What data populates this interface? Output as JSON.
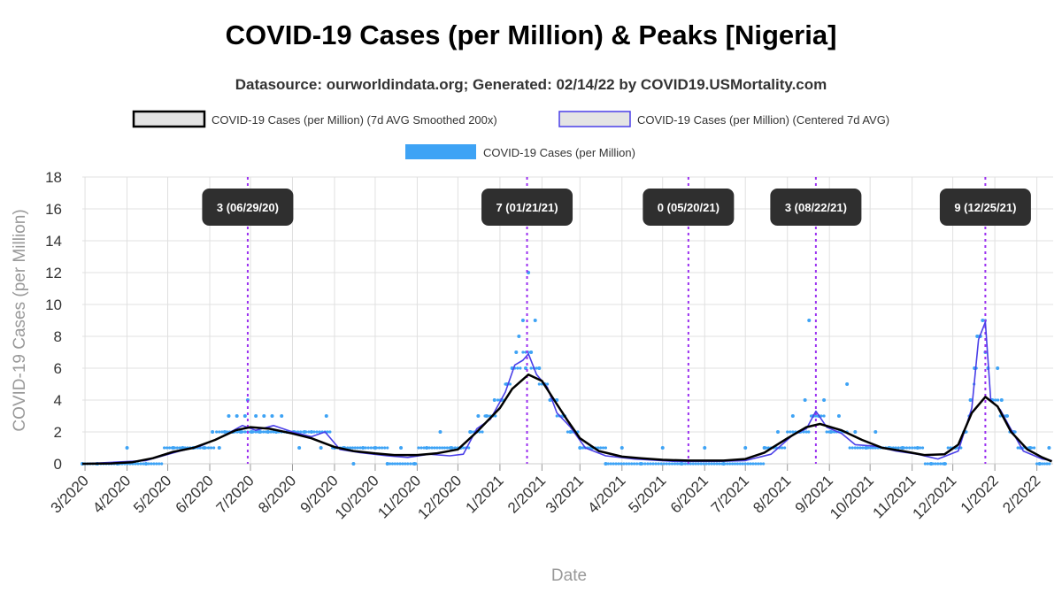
{
  "title": "COVID-19 Cases (per Million) & Peaks [Nigeria]",
  "subtitle": "Datasource: ourworldindata.org; Generated: 02/14/22 by COVID19.USMortality.com",
  "colors": {
    "smoothed": "#000000",
    "centered": "#4a3fe8",
    "daily": "#3ea3f5",
    "peak_line": "#9b30f0",
    "peak_box": "#2f2f2f",
    "grid": "#e0e0e0"
  },
  "chart_data": {
    "type": "line",
    "xlabel": "Date",
    "ylabel": "COVID-19 Cases (per Million)",
    "ylim": [
      0,
      18
    ],
    "yticks": [
      0,
      2,
      4,
      6,
      8,
      10,
      12,
      14,
      16,
      18
    ],
    "xlim": [
      "2020-02-28",
      "2022-02-13"
    ],
    "xticks": [
      {
        "label": "3/2020",
        "date": "2020-03-01"
      },
      {
        "label": "4/2020",
        "date": "2020-04-01"
      },
      {
        "label": "5/2020",
        "date": "2020-05-01"
      },
      {
        "label": "6/2020",
        "date": "2020-06-01"
      },
      {
        "label": "7/2020",
        "date": "2020-07-01"
      },
      {
        "label": "8/2020",
        "date": "2020-08-01"
      },
      {
        "label": "9/2020",
        "date": "2020-09-01"
      },
      {
        "label": "10/2020",
        "date": "2020-10-01"
      },
      {
        "label": "11/2020",
        "date": "2020-11-01"
      },
      {
        "label": "12/2020",
        "date": "2020-12-01"
      },
      {
        "label": "1/2021",
        "date": "2021-01-01"
      },
      {
        "label": "2/2021",
        "date": "2021-02-01"
      },
      {
        "label": "3/2021",
        "date": "2021-03-01"
      },
      {
        "label": "4/2021",
        "date": "2021-04-01"
      },
      {
        "label": "5/2021",
        "date": "2021-05-01"
      },
      {
        "label": "6/2021",
        "date": "2021-06-01"
      },
      {
        "label": "7/2021",
        "date": "2021-07-01"
      },
      {
        "label": "8/2021",
        "date": "2021-08-01"
      },
      {
        "label": "9/2021",
        "date": "2021-09-01"
      },
      {
        "label": "10/2021",
        "date": "2021-10-01"
      },
      {
        "label": "11/2021",
        "date": "2021-11-01"
      },
      {
        "label": "12/2021",
        "date": "2021-12-01"
      },
      {
        "label": "1/2022",
        "date": "2022-01-01"
      },
      {
        "label": "2/2022",
        "date": "2022-02-01"
      }
    ],
    "legend": [
      {
        "key": "smoothed",
        "label": "COVID-19 Cases (per Million) (7d AVG Smoothed 200x)"
      },
      {
        "key": "centered",
        "label": "COVID-19 Cases (per Million) (Centered 7d AVG)"
      },
      {
        "key": "daily",
        "label": "COVID-19 Cases (per Million)"
      }
    ],
    "peaks": [
      {
        "label": "3 (06/29/20)",
        "date": "2020-06-29"
      },
      {
        "label": "7 (01/21/21)",
        "date": "2021-01-21"
      },
      {
        "label": "0 (05/20/21)",
        "date": "2021-05-20"
      },
      {
        "label": "3 (08/22/21)",
        "date": "2021-08-22"
      },
      {
        "label": "9 (12/25/21)",
        "date": "2021-12-25"
      }
    ],
    "series": [
      {
        "name": "COVID-19 Cases (per Million) (7d AVG Smoothed 200x)",
        "key": "smoothed",
        "points": [
          [
            "2020-02-28",
            0
          ],
          [
            "2020-03-20",
            0.02
          ],
          [
            "2020-04-05",
            0.1
          ],
          [
            "2020-04-20",
            0.35
          ],
          [
            "2020-05-05",
            0.75
          ],
          [
            "2020-05-20",
            1.0
          ],
          [
            "2020-06-05",
            1.5
          ],
          [
            "2020-06-20",
            2.1
          ],
          [
            "2020-07-01",
            2.3
          ],
          [
            "2020-07-15",
            2.2
          ],
          [
            "2020-08-01",
            1.9
          ],
          [
            "2020-08-15",
            1.6
          ],
          [
            "2020-09-01",
            1.05
          ],
          [
            "2020-09-15",
            0.8
          ],
          [
            "2020-10-01",
            0.65
          ],
          [
            "2020-10-15",
            0.55
          ],
          [
            "2020-11-01",
            0.55
          ],
          [
            "2020-11-15",
            0.65
          ],
          [
            "2020-12-01",
            0.9
          ],
          [
            "2020-12-15",
            2.0
          ],
          [
            "2021-01-01",
            3.5
          ],
          [
            "2021-01-10",
            4.7
          ],
          [
            "2021-01-22",
            5.6
          ],
          [
            "2021-02-01",
            5.2
          ],
          [
            "2021-02-10",
            4.0
          ],
          [
            "2021-02-20",
            2.7
          ],
          [
            "2021-03-01",
            1.6
          ],
          [
            "2021-03-15",
            0.8
          ],
          [
            "2021-04-01",
            0.45
          ],
          [
            "2021-04-15",
            0.35
          ],
          [
            "2021-05-01",
            0.25
          ],
          [
            "2021-05-20",
            0.2
          ],
          [
            "2021-06-15",
            0.2
          ],
          [
            "2021-07-01",
            0.3
          ],
          [
            "2021-07-15",
            0.7
          ],
          [
            "2021-08-01",
            1.6
          ],
          [
            "2021-08-15",
            2.3
          ],
          [
            "2021-08-25",
            2.5
          ],
          [
            "2021-09-10",
            2.1
          ],
          [
            "2021-09-25",
            1.5
          ],
          [
            "2021-10-10",
            1.0
          ],
          [
            "2021-10-25",
            0.8
          ],
          [
            "2021-11-10",
            0.55
          ],
          [
            "2021-11-25",
            0.6
          ],
          [
            "2021-12-05",
            1.2
          ],
          [
            "2021-12-15",
            3.2
          ],
          [
            "2021-12-25",
            4.2
          ],
          [
            "2022-01-03",
            3.6
          ],
          [
            "2022-01-13",
            2.0
          ],
          [
            "2022-01-25",
            0.9
          ],
          [
            "2022-02-05",
            0.4
          ],
          [
            "2022-02-12",
            0.15
          ]
        ]
      },
      {
        "name": "COVID-19 Cases (per Million) (Centered 7d AVG)",
        "key": "centered",
        "points": [
          [
            "2020-02-28",
            0
          ],
          [
            "2020-04-15",
            0.2
          ],
          [
            "2020-05-10",
            0.8
          ],
          [
            "2020-05-25",
            1.1
          ],
          [
            "2020-06-10",
            1.7
          ],
          [
            "2020-06-25",
            2.4
          ],
          [
            "2020-07-05",
            2.1
          ],
          [
            "2020-07-18",
            2.4
          ],
          [
            "2020-08-01",
            2.0
          ],
          [
            "2020-08-15",
            1.7
          ],
          [
            "2020-08-25",
            2.0
          ],
          [
            "2020-09-05",
            0.9
          ],
          [
            "2020-09-20",
            0.7
          ],
          [
            "2020-10-10",
            0.5
          ],
          [
            "2020-10-25",
            0.4
          ],
          [
            "2020-11-10",
            0.6
          ],
          [
            "2020-11-25",
            0.5
          ],
          [
            "2020-12-05",
            0.6
          ],
          [
            "2020-12-15",
            2.2
          ],
          [
            "2020-12-25",
            2.8
          ],
          [
            "2021-01-05",
            4.5
          ],
          [
            "2021-01-12",
            6.2
          ],
          [
            "2021-01-18",
            6.5
          ],
          [
            "2021-01-22",
            6.9
          ],
          [
            "2021-01-28",
            5.6
          ],
          [
            "2021-02-05",
            4.8
          ],
          [
            "2021-02-12",
            3.2
          ],
          [
            "2021-02-22",
            2.3
          ],
          [
            "2021-03-05",
            1.0
          ],
          [
            "2021-03-20",
            0.5
          ],
          [
            "2021-04-10",
            0.3
          ],
          [
            "2021-05-10",
            0.15
          ],
          [
            "2021-06-10",
            0.15
          ],
          [
            "2021-07-01",
            0.2
          ],
          [
            "2021-07-20",
            0.6
          ],
          [
            "2021-08-05",
            1.8
          ],
          [
            "2021-08-15",
            2.2
          ],
          [
            "2021-08-22",
            3.3
          ],
          [
            "2021-08-30",
            2.3
          ],
          [
            "2021-09-10",
            1.9
          ],
          [
            "2021-09-20",
            1.2
          ],
          [
            "2021-10-05",
            1.1
          ],
          [
            "2021-10-20",
            0.8
          ],
          [
            "2021-11-05",
            0.6
          ],
          [
            "2021-11-20",
            0.3
          ],
          [
            "2021-12-05",
            0.8
          ],
          [
            "2021-12-15",
            3.5
          ],
          [
            "2021-12-20",
            7.8
          ],
          [
            "2021-12-25",
            8.9
          ],
          [
            "2021-12-29",
            4.0
          ],
          [
            "2022-01-05",
            3.4
          ],
          [
            "2022-01-12",
            2.3
          ],
          [
            "2022-01-22",
            0.8
          ],
          [
            "2022-02-05",
            0.3
          ],
          [
            "2022-02-12",
            0.2
          ]
        ]
      }
    ],
    "daily_points": [
      [
        "2020-02-28",
        0
      ],
      [
        "2020-03-10",
        0
      ],
      [
        "2020-03-25",
        0
      ],
      [
        "2020-04-01",
        1
      ],
      [
        "2020-04-15",
        0
      ],
      [
        "2020-05-05",
        1
      ],
      [
        "2020-05-12",
        1
      ],
      [
        "2020-05-20",
        1
      ],
      [
        "2020-05-28",
        1
      ],
      [
        "2020-06-03",
        2
      ],
      [
        "2020-06-08",
        1
      ],
      [
        "2020-06-12",
        2
      ],
      [
        "2020-06-15",
        3
      ],
      [
        "2020-06-18",
        2
      ],
      [
        "2020-06-21",
        3
      ],
      [
        "2020-06-24",
        2
      ],
      [
        "2020-06-27",
        3
      ],
      [
        "2020-06-29",
        4
      ],
      [
        "2020-07-02",
        2
      ],
      [
        "2020-07-05",
        3
      ],
      [
        "2020-07-08",
        2
      ],
      [
        "2020-07-11",
        3
      ],
      [
        "2020-07-14",
        2
      ],
      [
        "2020-07-17",
        3
      ],
      [
        "2020-07-20",
        2
      ],
      [
        "2020-07-24",
        3
      ],
      [
        "2020-07-28",
        2
      ],
      [
        "2020-08-02",
        2
      ],
      [
        "2020-08-06",
        1
      ],
      [
        "2020-08-10",
        2
      ],
      [
        "2020-08-15",
        2
      ],
      [
        "2020-08-22",
        1
      ],
      [
        "2020-08-26",
        3
      ],
      [
        "2020-09-01",
        1
      ],
      [
        "2020-09-08",
        1
      ],
      [
        "2020-09-15",
        0
      ],
      [
        "2020-09-22",
        1
      ],
      [
        "2020-10-01",
        1
      ],
      [
        "2020-10-10",
        0
      ],
      [
        "2020-10-20",
        1
      ],
      [
        "2020-10-30",
        0
      ],
      [
        "2020-11-08",
        1
      ],
      [
        "2020-11-18",
        2
      ],
      [
        "2020-11-26",
        1
      ],
      [
        "2020-12-03",
        1
      ],
      [
        "2020-12-10",
        2
      ],
      [
        "2020-12-16",
        3
      ],
      [
        "2020-12-22",
        3
      ],
      [
        "2020-12-28",
        4
      ],
      [
        "2021-01-02",
        4
      ],
      [
        "2021-01-06",
        5
      ],
      [
        "2021-01-10",
        6
      ],
      [
        "2021-01-13",
        7
      ],
      [
        "2021-01-15",
        8
      ],
      [
        "2021-01-18",
        9
      ],
      [
        "2021-01-20",
        6
      ],
      [
        "2021-01-22",
        12
      ],
      [
        "2021-01-24",
        7
      ],
      [
        "2021-01-27",
        9
      ],
      [
        "2021-01-30",
        6
      ],
      [
        "2021-02-03",
        5
      ],
      [
        "2021-02-07",
        4
      ],
      [
        "2021-02-12",
        4
      ],
      [
        "2021-02-17",
        3
      ],
      [
        "2021-02-22",
        2
      ],
      [
        "2021-03-01",
        1
      ],
      [
        "2021-03-10",
        1
      ],
      [
        "2021-03-20",
        0
      ],
      [
        "2021-04-01",
        1
      ],
      [
        "2021-04-15",
        0
      ],
      [
        "2021-05-01",
        1
      ],
      [
        "2021-05-15",
        0
      ],
      [
        "2021-06-01",
        1
      ],
      [
        "2021-06-15",
        0
      ],
      [
        "2021-07-01",
        1
      ],
      [
        "2021-07-15",
        1
      ],
      [
        "2021-07-25",
        2
      ],
      [
        "2021-08-05",
        3
      ],
      [
        "2021-08-10",
        2
      ],
      [
        "2021-08-14",
        4
      ],
      [
        "2021-08-17",
        9
      ],
      [
        "2021-08-20",
        3
      ],
      [
        "2021-08-24",
        3
      ],
      [
        "2021-08-28",
        4
      ],
      [
        "2021-09-02",
        2
      ],
      [
        "2021-09-08",
        3
      ],
      [
        "2021-09-14",
        5
      ],
      [
        "2021-09-20",
        2
      ],
      [
        "2021-09-28",
        1
      ],
      [
        "2021-10-05",
        2
      ],
      [
        "2021-10-15",
        1
      ],
      [
        "2021-10-25",
        1
      ],
      [
        "2021-11-05",
        1
      ],
      [
        "2021-11-15",
        0
      ],
      [
        "2021-11-25",
        0
      ],
      [
        "2021-12-03",
        1
      ],
      [
        "2021-12-10",
        2
      ],
      [
        "2021-12-14",
        4
      ],
      [
        "2021-12-17",
        6
      ],
      [
        "2021-12-19",
        8
      ],
      [
        "2021-12-21",
        8
      ],
      [
        "2021-12-23",
        9
      ],
      [
        "2021-12-25",
        7
      ],
      [
        "2021-12-27",
        6
      ],
      [
        "2021-12-30",
        4
      ],
      [
        "2022-01-03",
        6
      ],
      [
        "2022-01-06",
        4
      ],
      [
        "2022-01-10",
        3
      ],
      [
        "2022-01-15",
        2
      ],
      [
        "2022-01-20",
        1
      ],
      [
        "2022-01-27",
        1
      ],
      [
        "2022-02-03",
        0
      ],
      [
        "2022-02-10",
        1
      ]
    ]
  }
}
